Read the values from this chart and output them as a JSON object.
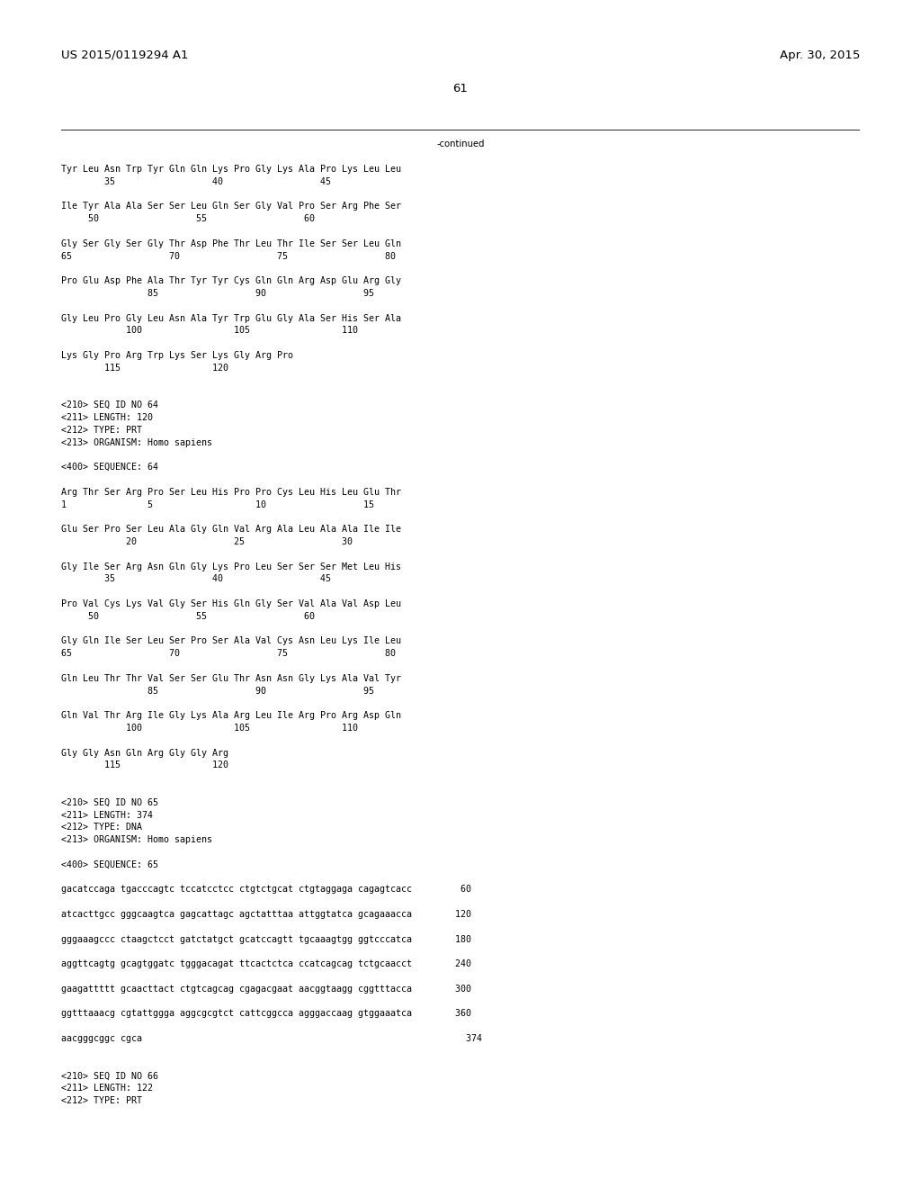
{
  "header_left": "US 2015/0119294 A1",
  "header_right": "Apr. 30, 2015",
  "page_number": "61",
  "continued_label": "-continued",
  "background_color": "#ffffff",
  "text_color": "#000000",
  "mono_font": "DejaVu Sans Mono",
  "header_font_size": 9.5,
  "body_font_size": 7.2,
  "lines": [
    "Tyr Leu Asn Trp Tyr Gln Gln Lys Pro Gly Lys Ala Pro Lys Leu Leu",
    "        35                  40                  45",
    "",
    "Ile Tyr Ala Ala Ser Ser Leu Gln Ser Gly Val Pro Ser Arg Phe Ser",
    "     50                  55                  60",
    "",
    "Gly Ser Gly Ser Gly Thr Asp Phe Thr Leu Thr Ile Ser Ser Leu Gln",
    "65                  70                  75                  80",
    "",
    "Pro Glu Asp Phe Ala Thr Tyr Tyr Cys Gln Gln Arg Asp Glu Arg Gly",
    "                85                  90                  95",
    "",
    "Gly Leu Pro Gly Leu Asn Ala Tyr Trp Glu Gly Ala Ser His Ser Ala",
    "            100                 105                 110",
    "",
    "Lys Gly Pro Arg Trp Lys Ser Lys Gly Arg Pro",
    "        115                 120",
    "",
    "",
    "<210> SEQ ID NO 64",
    "<211> LENGTH: 120",
    "<212> TYPE: PRT",
    "<213> ORGANISM: Homo sapiens",
    "",
    "<400> SEQUENCE: 64",
    "",
    "Arg Thr Ser Arg Pro Ser Leu His Pro Pro Cys Leu His Leu Glu Thr",
    "1               5                   10                  15",
    "",
    "Glu Ser Pro Ser Leu Ala Gly Gln Val Arg Ala Leu Ala Ala Ile Ile",
    "            20                  25                  30",
    "",
    "Gly Ile Ser Arg Asn Gln Gly Lys Pro Leu Ser Ser Ser Met Leu His",
    "        35                  40                  45",
    "",
    "Pro Val Cys Lys Val Gly Ser His Gln Gly Ser Val Ala Val Asp Leu",
    "     50                  55                  60",
    "",
    "Gly Gln Ile Ser Leu Ser Pro Ser Ala Val Cys Asn Leu Lys Ile Leu",
    "65                  70                  75                  80",
    "",
    "Gln Leu Thr Thr Val Ser Ser Glu Thr Asn Asn Gly Lys Ala Val Tyr",
    "                85                  90                  95",
    "",
    "Gln Val Thr Arg Ile Gly Lys Ala Arg Leu Ile Arg Pro Arg Asp Gln",
    "            100                 105                 110",
    "",
    "Gly Gly Asn Gln Arg Gly Gly Arg",
    "        115                 120",
    "",
    "",
    "<210> SEQ ID NO 65",
    "<211> LENGTH: 374",
    "<212> TYPE: DNA",
    "<213> ORGANISM: Homo sapiens",
    "",
    "<400> SEQUENCE: 65",
    "",
    "gacatccaga tgacccagtc tccatcctcc ctgtctgcat ctgtaggaga cagagtcacc         60",
    "",
    "atcacttgcc gggcaagtca gagcattagc agctatttaa attggtatca gcagaaacca        120",
    "",
    "gggaaagccc ctaagctcct gatctatgct gcatccagtt tgcaaagtgg ggtcccatca        180",
    "",
    "aggttcagtg gcagtggatc tgggacagat ttcactctca ccatcagcag tctgcaacct        240",
    "",
    "gaagattttt gcaacttact ctgtcagcag cgagacgaat aacggtaagg cggtttacca        300",
    "",
    "ggtttaaacg cgtattggga aggcgcgtct cattcggcca agggaccaag gtggaaatca        360",
    "",
    "aacgggcggc cgca                                                            374",
    "",
    "",
    "<210> SEQ ID NO 66",
    "<211> LENGTH: 122",
    "<212> TYPE: PRT"
  ]
}
